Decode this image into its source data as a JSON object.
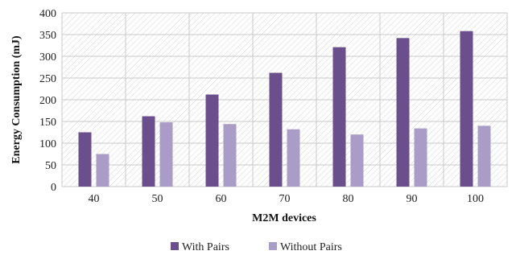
{
  "chart_data": {
    "type": "bar",
    "categories": [
      "40",
      "50",
      "60",
      "70",
      "80",
      "90",
      "100"
    ],
    "series": [
      {
        "name": "With Pairs",
        "values": [
          125,
          162,
          212,
          262,
          321,
          342,
          358
        ],
        "color": "#6b4f8c"
      },
      {
        "name": "Without Pairs",
        "values": [
          75,
          148,
          144,
          132,
          120,
          134,
          140
        ],
        "color": "#a99cc6"
      }
    ],
    "xlabel": "M2M devices",
    "ylabel": "Energy Consumption (mJ)",
    "ylim": [
      0,
      400
    ],
    "yticks": [
      "0",
      "50",
      "100",
      "150",
      "200",
      "250",
      "300",
      "350",
      "400"
    ],
    "grid": true,
    "legend": "bottom"
  }
}
